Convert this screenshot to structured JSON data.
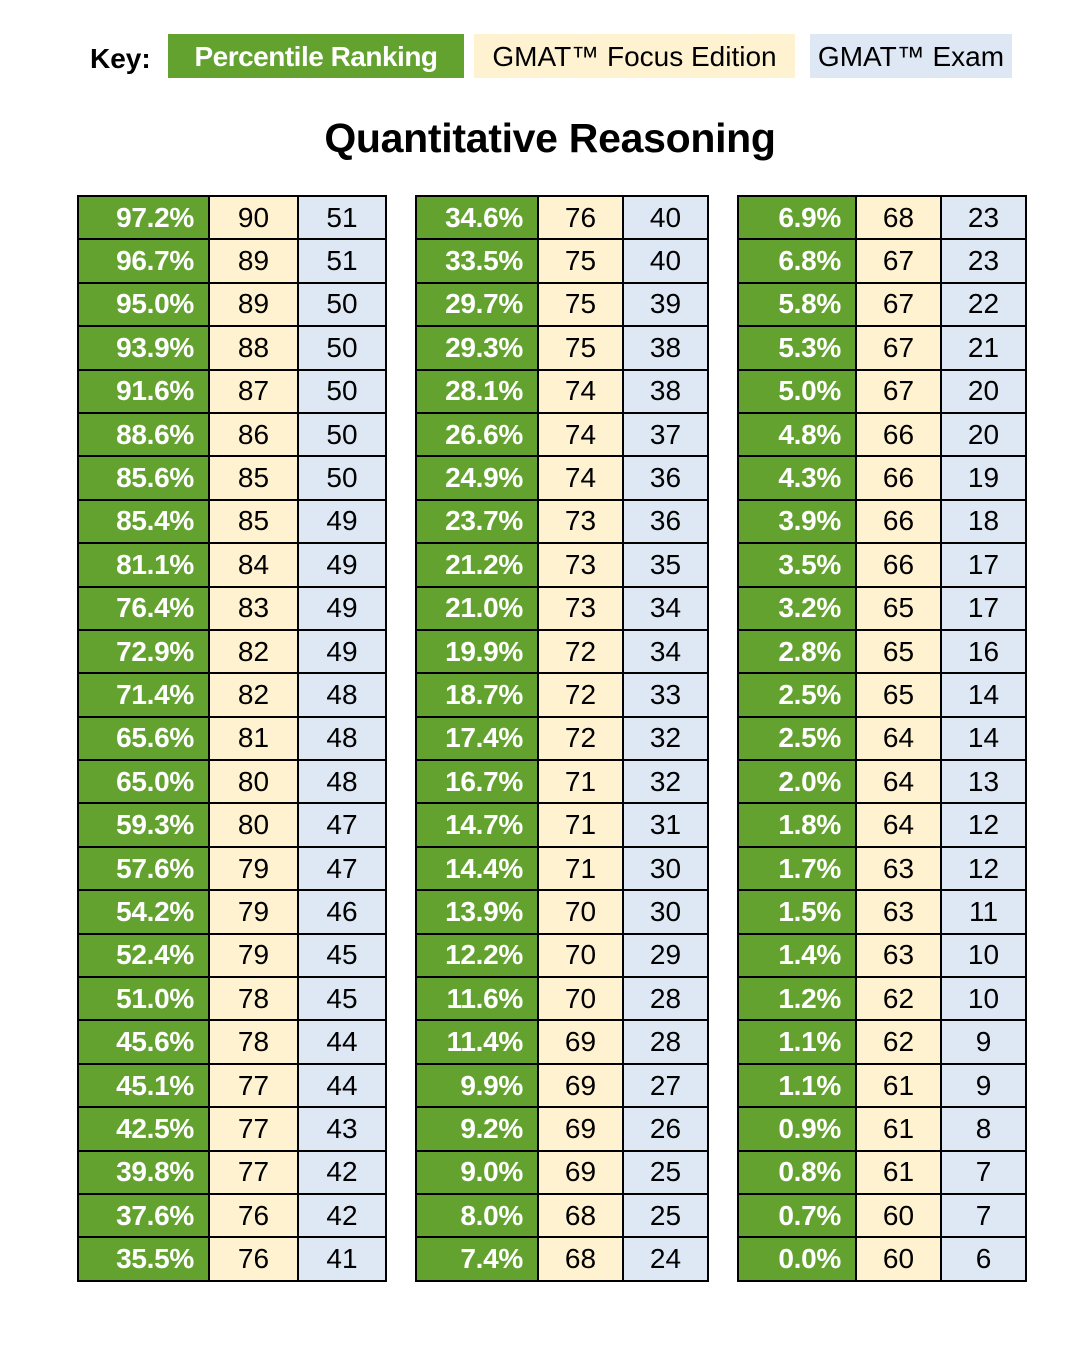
{
  "key": {
    "label": "Key:",
    "items": [
      {
        "label": "Percentile Ranking",
        "color": "#63a22f"
      },
      {
        "label": "GMAT™ Focus Edition",
        "color": "#fff2d0"
      },
      {
        "label": "GMAT™ Exam",
        "color": "#dee8f4"
      }
    ]
  },
  "title": "Quantitative Reasoning",
  "tables": [
    {
      "rows": [
        [
          "97.2%",
          "90",
          "51"
        ],
        [
          "96.7%",
          "89",
          "51"
        ],
        [
          "95.0%",
          "89",
          "50"
        ],
        [
          "93.9%",
          "88",
          "50"
        ],
        [
          "91.6%",
          "87",
          "50"
        ],
        [
          "88.6%",
          "86",
          "50"
        ],
        [
          "85.6%",
          "85",
          "50"
        ],
        [
          "85.4%",
          "85",
          "49"
        ],
        [
          "81.1%",
          "84",
          "49"
        ],
        [
          "76.4%",
          "83",
          "49"
        ],
        [
          "72.9%",
          "82",
          "49"
        ],
        [
          "71.4%",
          "82",
          "48"
        ],
        [
          "65.6%",
          "81",
          "48"
        ],
        [
          "65.0%",
          "80",
          "48"
        ],
        [
          "59.3%",
          "80",
          "47"
        ],
        [
          "57.6%",
          "79",
          "47"
        ],
        [
          "54.2%",
          "79",
          "46"
        ],
        [
          "52.4%",
          "79",
          "45"
        ],
        [
          "51.0%",
          "78",
          "45"
        ],
        [
          "45.6%",
          "78",
          "44"
        ],
        [
          "45.1%",
          "77",
          "44"
        ],
        [
          "42.5%",
          "77",
          "43"
        ],
        [
          "39.8%",
          "77",
          "42"
        ],
        [
          "37.6%",
          "76",
          "42"
        ],
        [
          "35.5%",
          "76",
          "41"
        ]
      ]
    },
    {
      "rows": [
        [
          "34.6%",
          "76",
          "40"
        ],
        [
          "33.5%",
          "75",
          "40"
        ],
        [
          "29.7%",
          "75",
          "39"
        ],
        [
          "29.3%",
          "75",
          "38"
        ],
        [
          "28.1%",
          "74",
          "38"
        ],
        [
          "26.6%",
          "74",
          "37"
        ],
        [
          "24.9%",
          "74",
          "36"
        ],
        [
          "23.7%",
          "73",
          "36"
        ],
        [
          "21.2%",
          "73",
          "35"
        ],
        [
          "21.0%",
          "73",
          "34"
        ],
        [
          "19.9%",
          "72",
          "34"
        ],
        [
          "18.7%",
          "72",
          "33"
        ],
        [
          "17.4%",
          "72",
          "32"
        ],
        [
          "16.7%",
          "71",
          "32"
        ],
        [
          "14.7%",
          "71",
          "31"
        ],
        [
          "14.4%",
          "71",
          "30"
        ],
        [
          "13.9%",
          "70",
          "30"
        ],
        [
          "12.2%",
          "70",
          "29"
        ],
        [
          "11.6%",
          "70",
          "28"
        ],
        [
          "11.4%",
          "69",
          "28"
        ],
        [
          "9.9%",
          "69",
          "27"
        ],
        [
          "9.2%",
          "69",
          "26"
        ],
        [
          "9.0%",
          "69",
          "25"
        ],
        [
          "8.0%",
          "68",
          "25"
        ],
        [
          "7.4%",
          "68",
          "24"
        ]
      ]
    },
    {
      "rows": [
        [
          "6.9%",
          "68",
          "23"
        ],
        [
          "6.8%",
          "67",
          "23"
        ],
        [
          "5.8%",
          "67",
          "22"
        ],
        [
          "5.3%",
          "67",
          "21"
        ],
        [
          "5.0%",
          "67",
          "20"
        ],
        [
          "4.8%",
          "66",
          "20"
        ],
        [
          "4.3%",
          "66",
          "19"
        ],
        [
          "3.9%",
          "66",
          "18"
        ],
        [
          "3.5%",
          "66",
          "17"
        ],
        [
          "3.2%",
          "65",
          "17"
        ],
        [
          "2.8%",
          "65",
          "16"
        ],
        [
          "2.5%",
          "65",
          "14"
        ],
        [
          "2.5%",
          "64",
          "14"
        ],
        [
          "2.0%",
          "64",
          "13"
        ],
        [
          "1.8%",
          "64",
          "12"
        ],
        [
          "1.7%",
          "63",
          "12"
        ],
        [
          "1.5%",
          "63",
          "11"
        ],
        [
          "1.4%",
          "63",
          "10"
        ],
        [
          "1.2%",
          "62",
          "10"
        ],
        [
          "1.1%",
          "62",
          "9"
        ],
        [
          "1.1%",
          "61",
          "9"
        ],
        [
          "0.9%",
          "61",
          "8"
        ],
        [
          "0.8%",
          "61",
          "7"
        ],
        [
          "0.7%",
          "60",
          "7"
        ],
        [
          "0.0%",
          "60",
          "6"
        ]
      ]
    }
  ]
}
